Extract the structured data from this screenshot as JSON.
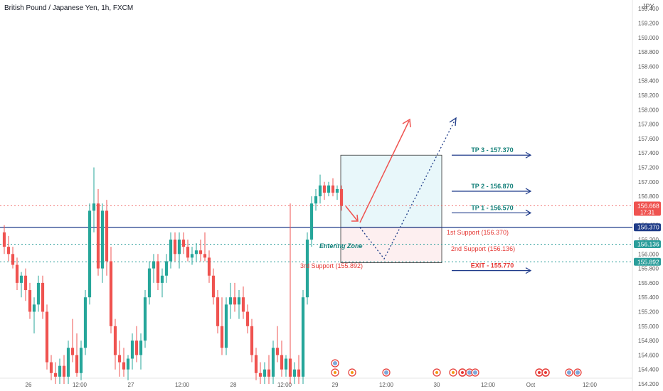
{
  "header": {
    "symbol_title": "British Pound / Japanese Yen, 1h, FXCM",
    "currency": "JPY"
  },
  "colors": {
    "up": "#26a69a",
    "down": "#ef5350",
    "level_blue": "#1e3a8a",
    "teal_text": "#15807a",
    "red_text": "#e53935",
    "dot_teal": "#2a9d9a",
    "box_fill_top": "#e8f7fa",
    "box_fill_bottom": "#fdeff0",
    "price_badge": "#ef5350",
    "level_badge": "#1f3c88"
  },
  "chart_data": {
    "type": "candlestick",
    "y_axis": {
      "ticks": [
        "159.400",
        "159.200",
        "159.000",
        "158.800",
        "158.600",
        "158.400",
        "158.200",
        "158.000",
        "157.800",
        "157.600",
        "157.400",
        "157.200",
        "157.000",
        "156.800",
        "156.600",
        "156.400",
        "156.200",
        "156.000",
        "155.800",
        "155.600",
        "155.400",
        "155.200",
        "155.000",
        "154.800",
        "154.600",
        "154.400",
        "154.200"
      ],
      "range": [
        154.2,
        159.6
      ]
    },
    "x_axis": {
      "ticks": [
        "26",
        "12:00",
        "27",
        "12:00",
        "28",
        "12:00",
        "29",
        "12:00",
        "30",
        "12:00",
        "Oct",
        "12:00"
      ]
    },
    "last_price": {
      "value": "156.668",
      "countdown": "17:31"
    },
    "level_badges": [
      {
        "value": "156.370"
      },
      {
        "value": "156.136"
      },
      {
        "value": "155.892"
      }
    ],
    "candles": [
      {
        "o": 156.3,
        "h": 156.4,
        "l": 156.0,
        "c": 156.1
      },
      {
        "o": 156.1,
        "h": 156.25,
        "l": 155.9,
        "c": 156.0
      },
      {
        "o": 156.0,
        "h": 156.1,
        "l": 155.8,
        "c": 155.85
      },
      {
        "o": 155.85,
        "h": 155.95,
        "l": 155.5,
        "c": 155.6
      },
      {
        "o": 155.6,
        "h": 155.75,
        "l": 155.4,
        "c": 155.7
      },
      {
        "o": 155.7,
        "h": 155.8,
        "l": 155.35,
        "c": 155.5
      },
      {
        "o": 155.5,
        "h": 155.6,
        "l": 155.1,
        "c": 155.2
      },
      {
        "o": 155.2,
        "h": 155.4,
        "l": 154.9,
        "c": 155.3
      },
      {
        "o": 155.3,
        "h": 155.7,
        "l": 155.2,
        "c": 155.6
      },
      {
        "o": 155.6,
        "h": 155.7,
        "l": 155.1,
        "c": 155.2
      },
      {
        "o": 155.2,
        "h": 155.3,
        "l": 154.4,
        "c": 154.5
      },
      {
        "o": 154.5,
        "h": 154.6,
        "l": 154.25,
        "c": 154.35
      },
      {
        "o": 154.35,
        "h": 154.5,
        "l": 154.2,
        "c": 154.3
      },
      {
        "o": 154.3,
        "h": 154.55,
        "l": 154.2,
        "c": 154.45
      },
      {
        "o": 154.45,
        "h": 154.6,
        "l": 154.2,
        "c": 154.3
      },
      {
        "o": 154.3,
        "h": 154.8,
        "l": 154.2,
        "c": 154.7
      },
      {
        "o": 154.7,
        "h": 155.1,
        "l": 154.5,
        "c": 154.6
      },
      {
        "o": 154.6,
        "h": 154.9,
        "l": 154.3,
        "c": 154.35
      },
      {
        "o": 154.35,
        "h": 154.8,
        "l": 154.25,
        "c": 154.7
      },
      {
        "o": 154.7,
        "h": 155.5,
        "l": 154.6,
        "c": 155.4
      },
      {
        "o": 155.4,
        "h": 156.7,
        "l": 155.3,
        "c": 156.6
      },
      {
        "o": 156.6,
        "h": 157.2,
        "l": 156.3,
        "c": 156.7
      },
      {
        "o": 156.7,
        "h": 156.9,
        "l": 155.7,
        "c": 155.8
      },
      {
        "o": 155.8,
        "h": 156.7,
        "l": 155.6,
        "c": 156.6
      },
      {
        "o": 156.6,
        "h": 156.75,
        "l": 155.7,
        "c": 155.9
      },
      {
        "o": 155.9,
        "h": 156.1,
        "l": 154.9,
        "c": 155.0
      },
      {
        "o": 155.0,
        "h": 155.1,
        "l": 154.4,
        "c": 154.6
      },
      {
        "o": 154.6,
        "h": 154.8,
        "l": 154.3,
        "c": 154.5
      },
      {
        "o": 154.5,
        "h": 154.7,
        "l": 154.3,
        "c": 154.4
      },
      {
        "o": 154.4,
        "h": 154.6,
        "l": 154.25,
        "c": 154.55
      },
      {
        "o": 154.55,
        "h": 154.9,
        "l": 154.4,
        "c": 154.8
      },
      {
        "o": 154.8,
        "h": 155.0,
        "l": 154.5,
        "c": 154.6
      },
      {
        "o": 154.6,
        "h": 154.9,
        "l": 154.4,
        "c": 154.8
      },
      {
        "o": 154.8,
        "h": 155.5,
        "l": 154.7,
        "c": 155.4
      },
      {
        "o": 155.4,
        "h": 155.9,
        "l": 155.3,
        "c": 155.8
      },
      {
        "o": 155.8,
        "h": 156.0,
        "l": 155.6,
        "c": 155.9
      },
      {
        "o": 155.9,
        "h": 156.0,
        "l": 155.5,
        "c": 155.6
      },
      {
        "o": 155.6,
        "h": 155.8,
        "l": 155.4,
        "c": 155.7
      },
      {
        "o": 155.7,
        "h": 156.0,
        "l": 155.6,
        "c": 155.9
      },
      {
        "o": 155.9,
        "h": 156.3,
        "l": 155.8,
        "c": 156.2
      },
      {
        "o": 156.2,
        "h": 156.3,
        "l": 155.9,
        "c": 156.0
      },
      {
        "o": 156.0,
        "h": 156.3,
        "l": 155.8,
        "c": 156.2
      },
      {
        "o": 156.2,
        "h": 156.3,
        "l": 156.0,
        "c": 156.1
      },
      {
        "o": 156.1,
        "h": 156.2,
        "l": 155.9,
        "c": 155.95
      },
      {
        "o": 155.95,
        "h": 156.1,
        "l": 155.85,
        "c": 156.0
      },
      {
        "o": 156.0,
        "h": 156.15,
        "l": 155.9,
        "c": 156.05
      },
      {
        "o": 156.05,
        "h": 156.2,
        "l": 155.9,
        "c": 156.0
      },
      {
        "o": 156.0,
        "h": 156.3,
        "l": 155.9,
        "c": 155.95
      },
      {
        "o": 155.95,
        "h": 156.05,
        "l": 155.6,
        "c": 155.7
      },
      {
        "o": 155.7,
        "h": 155.8,
        "l": 155.3,
        "c": 155.4
      },
      {
        "o": 155.4,
        "h": 155.5,
        "l": 154.9,
        "c": 155.0
      },
      {
        "o": 155.0,
        "h": 155.4,
        "l": 154.6,
        "c": 154.7
      },
      {
        "o": 154.7,
        "h": 155.4,
        "l": 154.6,
        "c": 155.3
      },
      {
        "o": 155.3,
        "h": 155.6,
        "l": 155.1,
        "c": 155.4
      },
      {
        "o": 155.4,
        "h": 155.6,
        "l": 155.2,
        "c": 155.3
      },
      {
        "o": 155.3,
        "h": 155.5,
        "l": 155.1,
        "c": 155.4
      },
      {
        "o": 155.4,
        "h": 155.55,
        "l": 155.1,
        "c": 155.2
      },
      {
        "o": 155.2,
        "h": 155.3,
        "l": 154.9,
        "c": 155.0
      },
      {
        "o": 155.0,
        "h": 155.1,
        "l": 154.5,
        "c": 154.6
      },
      {
        "o": 154.6,
        "h": 154.7,
        "l": 154.25,
        "c": 154.35
      },
      {
        "o": 154.35,
        "h": 154.5,
        "l": 154.2,
        "c": 154.3
      },
      {
        "o": 154.3,
        "h": 154.5,
        "l": 154.2,
        "c": 154.4
      },
      {
        "o": 154.4,
        "h": 154.6,
        "l": 154.2,
        "c": 154.3
      },
      {
        "o": 154.3,
        "h": 154.8,
        "l": 154.2,
        "c": 154.7
      },
      {
        "o": 154.7,
        "h": 155.0,
        "l": 154.5,
        "c": 154.6
      },
      {
        "o": 154.6,
        "h": 154.8,
        "l": 154.3,
        "c": 154.4
      },
      {
        "o": 154.4,
        "h": 154.6,
        "l": 154.3,
        "c": 154.55
      },
      {
        "o": 154.55,
        "h": 156.7,
        "l": 154.2,
        "c": 154.3
      },
      {
        "o": 154.3,
        "h": 154.5,
        "l": 154.2,
        "c": 154.4
      },
      {
        "o": 154.4,
        "h": 154.6,
        "l": 154.2,
        "c": 154.3
      },
      {
        "o": 154.3,
        "h": 155.5,
        "l": 154.2,
        "c": 155.4
      },
      {
        "o": 155.4,
        "h": 156.3,
        "l": 155.3,
        "c": 156.2
      },
      {
        "o": 156.2,
        "h": 156.8,
        "l": 156.1,
        "c": 156.7
      },
      {
        "o": 156.7,
        "h": 156.9,
        "l": 156.6,
        "c": 156.8
      },
      {
        "o": 156.8,
        "h": 157.1,
        "l": 156.7,
        "c": 156.95
      },
      {
        "o": 156.95,
        "h": 157.0,
        "l": 156.75,
        "c": 156.85
      },
      {
        "o": 156.85,
        "h": 157.0,
        "l": 156.8,
        "c": 156.95
      },
      {
        "o": 156.95,
        "h": 157.05,
        "l": 156.8,
        "c": 156.85
      },
      {
        "o": 156.85,
        "h": 156.95,
        "l": 156.75,
        "c": 156.9
      },
      {
        "o": 156.9,
        "h": 156.95,
        "l": 156.6,
        "c": 156.668
      }
    ],
    "levels": [
      {
        "name": "key-level",
        "value": 156.37
      },
      {
        "name": "support-2",
        "value": 156.136
      },
      {
        "name": "support-3",
        "value": 155.892
      }
    ],
    "targets": [
      {
        "label": "TP 3 - 157.370",
        "value": 157.37
      },
      {
        "label": "TP 2 - 156.870",
        "value": 156.87
      },
      {
        "label": "TP 1 - 156.570",
        "value": 156.57
      },
      {
        "label": "EXIT - 155.770",
        "value": 155.77
      }
    ]
  },
  "annotations": {
    "support_1": "1st Support (156.370)",
    "support_2": "2nd Support (156.136)",
    "support_3": "3rd Support (155.892)",
    "entering_zone": "Entering Zone"
  }
}
